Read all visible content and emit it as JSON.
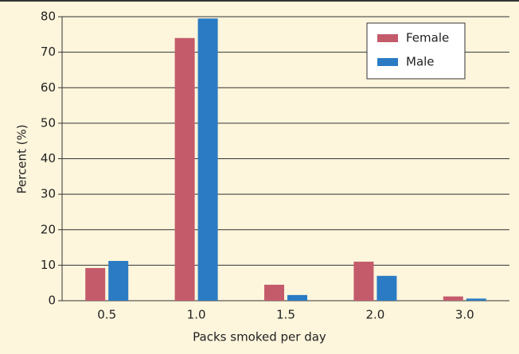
{
  "chart_data": {
    "type": "bar",
    "xlabel": "Packs smoked per day",
    "ylabel": "Percent (%)",
    "categories": [
      "0.5",
      "1.0",
      "1.5",
      "2.0",
      "3.0"
    ],
    "series": [
      {
        "name": "Female",
        "color": "#c45b6b",
        "values": [
          9.2,
          74,
          4.5,
          11,
          1.2
        ]
      },
      {
        "name": "Male",
        "color": "#2b7bc4",
        "values": [
          11.2,
          79.5,
          1.6,
          7,
          0.6
        ]
      }
    ],
    "ylim": [
      0,
      80
    ],
    "yticks": [
      0,
      10,
      20,
      30,
      40,
      50,
      60,
      70,
      80
    ],
    "grid": true,
    "legend": "upper right"
  }
}
